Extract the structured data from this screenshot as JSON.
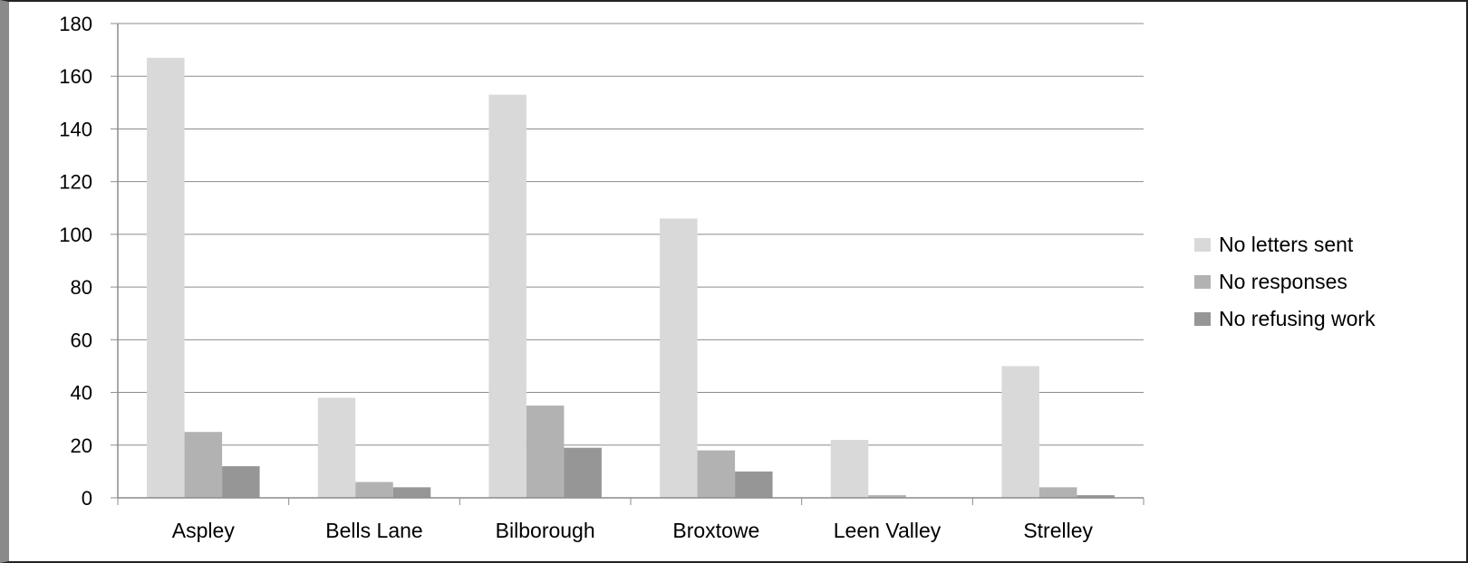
{
  "chart_data": {
    "type": "bar",
    "categories": [
      "Aspley",
      "Bells Lane",
      "Bilborough",
      "Broxtowe",
      "Leen Valley",
      "Strelley"
    ],
    "series": [
      {
        "name": "No letters sent",
        "values": [
          167,
          38,
          153,
          106,
          22,
          50
        ],
        "color": "#d9d9d9"
      },
      {
        "name": "No responses",
        "values": [
          25,
          6,
          35,
          18,
          1,
          4
        ],
        "color": "#b2b2b2"
      },
      {
        "name": "No refusing work",
        "values": [
          12,
          4,
          19,
          10,
          0,
          1
        ],
        "color": "#969696"
      }
    ],
    "ylim": [
      0,
      180
    ],
    "yticks": [
      0,
      20,
      40,
      60,
      80,
      100,
      120,
      140,
      160,
      180
    ],
    "grid": true,
    "legend": "right",
    "title": "",
    "xlabel": "",
    "ylabel": ""
  }
}
